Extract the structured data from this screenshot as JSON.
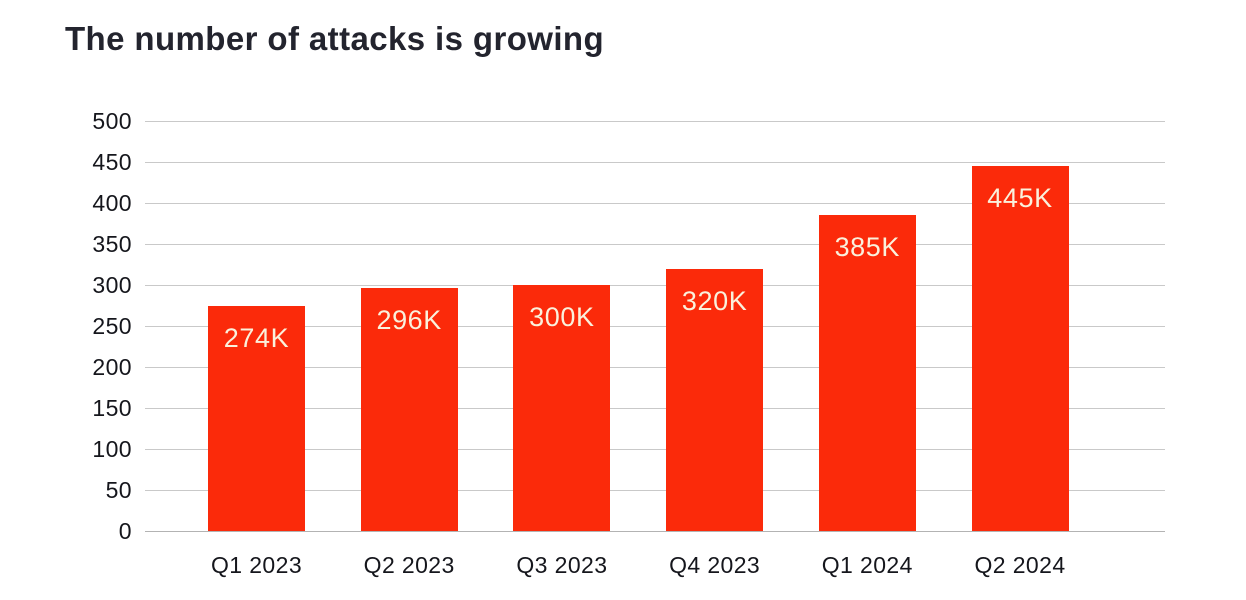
{
  "title": "The number of attacks is growing",
  "colors": {
    "background": "#ffffff",
    "bar": "#fb2a0a",
    "bar_label": "#faf1dc",
    "title_text": "#23242e",
    "axis_text": "#15161c",
    "gridline": "#c9c9c9",
    "zero_line": "#b3b3b3"
  },
  "chart_data": {
    "type": "bar",
    "title": "The number of attacks is growing",
    "categories": [
      "Q1 2023",
      "Q2 2023",
      "Q3 2023",
      "Q4 2023",
      "Q1 2024",
      "Q2 2024"
    ],
    "values": [
      274,
      296,
      300,
      320,
      385,
      445
    ],
    "bar_labels": [
      "274K",
      "296K",
      "300K",
      "320K",
      "385K",
      "445K"
    ],
    "unit": "K (thousands of attacks)",
    "xlabel": "",
    "ylabel": "",
    "ylim": [
      0,
      500
    ],
    "yticks": [
      0,
      50,
      100,
      150,
      200,
      250,
      300,
      350,
      400,
      450,
      500
    ],
    "grid": "horizontal",
    "legend": "none",
    "bar_label_position": "inside-top"
  }
}
